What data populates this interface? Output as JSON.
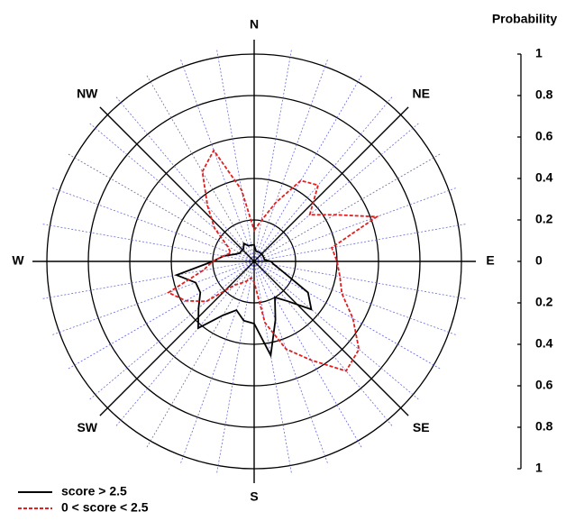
{
  "chart_data": {
    "type": "polar",
    "scale_label": "Probability",
    "compass": [
      "N",
      "NE",
      "E",
      "SE",
      "S",
      "SW",
      "W",
      "NW"
    ],
    "theta": [
      0,
      10,
      20,
      30,
      40,
      50,
      60,
      70,
      80,
      90,
      100,
      110,
      120,
      130,
      140,
      150,
      160,
      170,
      180,
      190,
      200,
      210,
      220,
      230,
      240,
      250,
      260,
      270,
      280,
      290,
      300,
      310,
      320,
      330,
      340,
      350
    ],
    "rlim": [
      0,
      1
    ],
    "rticks": [
      0,
      0.2,
      0.4,
      0.6,
      0.8,
      1
    ],
    "series": [
      {
        "name": "score > 2.5",
        "color": "#000000",
        "dash": false,
        "values": [
          0.08,
          0.05,
          0.05,
          0.05,
          0.05,
          0.05,
          0.05,
          0.05,
          0.05,
          0.08,
          0.1,
          0.15,
          0.3,
          0.36,
          0.25,
          0.2,
          0.3,
          0.46,
          0.3,
          0.29,
          0.25,
          0.3,
          0.42,
          0.35,
          0.3,
          0.3,
          0.38,
          0.2,
          0.15,
          0.1,
          0.08,
          0.08,
          0.08,
          0.1,
          0.08,
          0.08
        ]
      },
      {
        "name": "0 < score < 2.5",
        "color": "#e02020",
        "dash": true,
        "values": [
          0.15,
          0.2,
          0.3,
          0.45,
          0.48,
          0.35,
          0.45,
          0.63,
          0.38,
          0.4,
          0.42,
          0.45,
          0.55,
          0.66,
          0.69,
          0.55,
          0.45,
          0.3,
          0.1,
          0.08,
          0.1,
          0.12,
          0.15,
          0.3,
          0.38,
          0.44,
          0.25,
          0.2,
          0.15,
          0.12,
          0.15,
          0.25,
          0.35,
          0.5,
          0.57,
          0.35
        ]
      }
    ]
  }
}
